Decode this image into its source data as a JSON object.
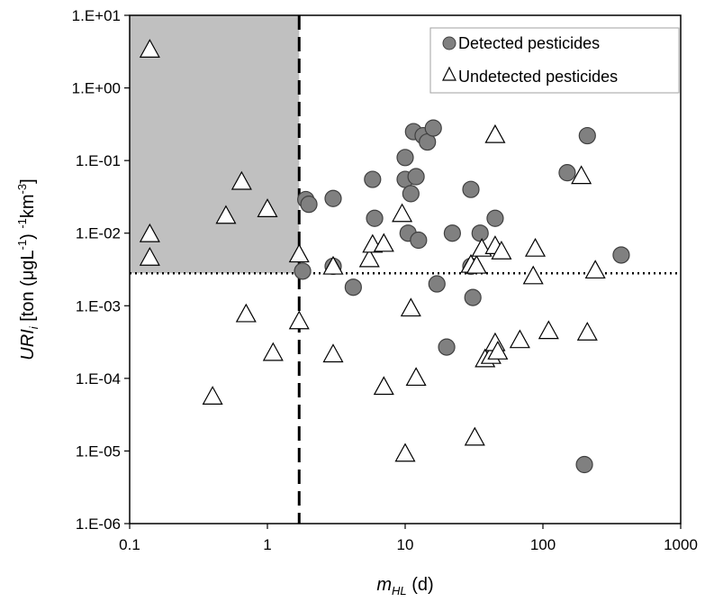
{
  "chart_data": {
    "type": "scatter",
    "x_scale": "log",
    "y_scale": "log",
    "xlim": [
      0.1,
      1000
    ],
    "ylim": [
      1e-06,
      10
    ],
    "x_ticks": [
      "0.1",
      "1",
      "10",
      "100",
      "1000"
    ],
    "y_ticks": [
      "1.E-06",
      "1.E-05",
      "1.E-04",
      "1.E-03",
      "1.E-02",
      "1.E-01",
      "1.E+00",
      "1.E+01"
    ],
    "xlabel": {
      "main": "m",
      "sub": "HL",
      "suffix": " (d)"
    },
    "ylabel": {
      "main": "URI",
      "sub": "i",
      "text1": " [ton (μgL",
      "sup1": "-1",
      "text2": ") ",
      "sup2": "-1",
      "text3": "km",
      "sup3": "-3",
      "text4": "]"
    },
    "legend_position": "top-right",
    "threshold_x": 1.7,
    "threshold_y": 0.0028,
    "shaded_region": {
      "x": [
        0.1,
        1.7
      ],
      "y": [
        0.0028,
        10
      ],
      "color": "#c0c0c0"
    },
    "series": [
      {
        "name": "Detected pesticides",
        "marker": "circle",
        "color": "#808080",
        "points": [
          [
            1.8,
            0.003
          ],
          [
            1.9,
            0.029
          ],
          [
            2.0,
            0.025
          ],
          [
            3.0,
            0.03
          ],
          [
            3.0,
            0.0035
          ],
          [
            4.2,
            0.0018
          ],
          [
            5.8,
            0.055
          ],
          [
            6.0,
            0.016
          ],
          [
            10.0,
            0.11
          ],
          [
            10.0,
            0.055
          ],
          [
            10.5,
            0.01
          ],
          [
            11.0,
            0.035
          ],
          [
            11.5,
            0.25
          ],
          [
            12.0,
            0.06
          ],
          [
            12.5,
            0.008
          ],
          [
            13.5,
            0.22
          ],
          [
            14.5,
            0.18
          ],
          [
            16.0,
            0.28
          ],
          [
            17.0,
            0.002
          ],
          [
            20.0,
            0.00027
          ],
          [
            22.0,
            0.01
          ],
          [
            30.0,
            0.04
          ],
          [
            30.0,
            0.0035
          ],
          [
            31.0,
            0.0013
          ],
          [
            35.0,
            0.01
          ],
          [
            45.0,
            0.016
          ],
          [
            150.0,
            0.068
          ],
          [
            200.0,
            6.5e-06
          ],
          [
            210.0,
            0.22
          ],
          [
            370.0,
            0.005
          ]
        ]
      },
      {
        "name": "Undetected pesticides",
        "marker": "triangle",
        "color": "#ffffff",
        "points": [
          [
            0.14,
            3.3
          ],
          [
            0.14,
            0.0095
          ],
          [
            0.14,
            0.0045
          ],
          [
            0.4,
            5.5e-05
          ],
          [
            0.5,
            0.017
          ],
          [
            0.65,
            0.05
          ],
          [
            0.7,
            0.00075
          ],
          [
            1.0,
            0.021
          ],
          [
            1.1,
            0.00022
          ],
          [
            1.7,
            0.005
          ],
          [
            1.7,
            0.0006
          ],
          [
            3.0,
            0.0034
          ],
          [
            3.0,
            0.00021
          ],
          [
            5.5,
            0.0043
          ],
          [
            5.8,
            0.0068
          ],
          [
            7.0,
            0.007
          ],
          [
            7.0,
            7.5e-05
          ],
          [
            9.5,
            0.018
          ],
          [
            10.0,
            9e-06
          ],
          [
            11.0,
            0.0009
          ],
          [
            12.0,
            0.0001
          ],
          [
            30.0,
            0.0036
          ],
          [
            32.0,
            1.5e-05
          ],
          [
            33.0,
            0.0035
          ],
          [
            36.0,
            0.006
          ],
          [
            38.0,
            0.00018
          ],
          [
            42.0,
            0.0002
          ],
          [
            45.0,
            0.22
          ],
          [
            45.0,
            0.0065
          ],
          [
            45.0,
            0.0003
          ],
          [
            47.0,
            0.00023
          ],
          [
            50.0,
            0.0055
          ],
          [
            68.0,
            0.00033
          ],
          [
            85.0,
            0.0025
          ],
          [
            88.0,
            0.006
          ],
          [
            110.0,
            0.00044
          ],
          [
            190.0,
            0.06
          ],
          [
            210.0,
            0.00042
          ],
          [
            240.0,
            0.003
          ]
        ]
      }
    ]
  }
}
